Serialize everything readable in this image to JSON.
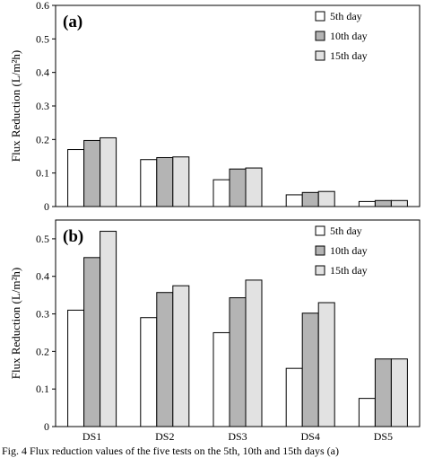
{
  "chart_data": [
    {
      "type": "bar",
      "panel_label": "(a)",
      "categories": [
        "DS1",
        "DS2",
        "DS3",
        "DS4",
        "DS5"
      ],
      "series": [
        {
          "name": "5th day",
          "color": "#ffffff",
          "values": [
            0.17,
            0.14,
            0.08,
            0.035,
            0.015
          ]
        },
        {
          "name": "10th day",
          "color": "#b4b4b4",
          "values": [
            0.197,
            0.146,
            0.112,
            0.042,
            0.018
          ]
        },
        {
          "name": "15th day",
          "color": "#e2e2e2",
          "values": [
            0.205,
            0.148,
            0.115,
            0.045,
            0.018
          ]
        }
      ],
      "ylabel": "Flux Reduction (L/m²h)",
      "ylim": [
        0,
        0.6
      ],
      "yticks": [
        "0",
        "0.1",
        "0.2",
        "0.3",
        "0.4",
        "0.5",
        "0.6"
      ],
      "legend_position": "top-right",
      "grid": false
    },
    {
      "type": "bar",
      "panel_label": "(b)",
      "categories": [
        "DS1",
        "DS2",
        "DS3",
        "DS4",
        "DS5"
      ],
      "series": [
        {
          "name": "5th day",
          "color": "#ffffff",
          "values": [
            0.31,
            0.29,
            0.25,
            0.155,
            0.075
          ]
        },
        {
          "name": "10th day",
          "color": "#b4b4b4",
          "values": [
            0.45,
            0.357,
            0.343,
            0.302,
            0.18
          ]
        },
        {
          "name": "15th day",
          "color": "#e2e2e2",
          "values": [
            0.52,
            0.375,
            0.39,
            0.33,
            0.18
          ]
        }
      ],
      "ylabel": "Flux Reduction (L/m²h)",
      "ylim": [
        0,
        0.55
      ],
      "yticks": [
        "0",
        "0.1",
        "0.2",
        "0.3",
        "0.4",
        "0.5"
      ],
      "legend_position": "top-right",
      "grid": false
    }
  ],
  "caption": "Fig. 4 Flux reduction values of the five tests on the 5th, 10th and 15th days (a)"
}
